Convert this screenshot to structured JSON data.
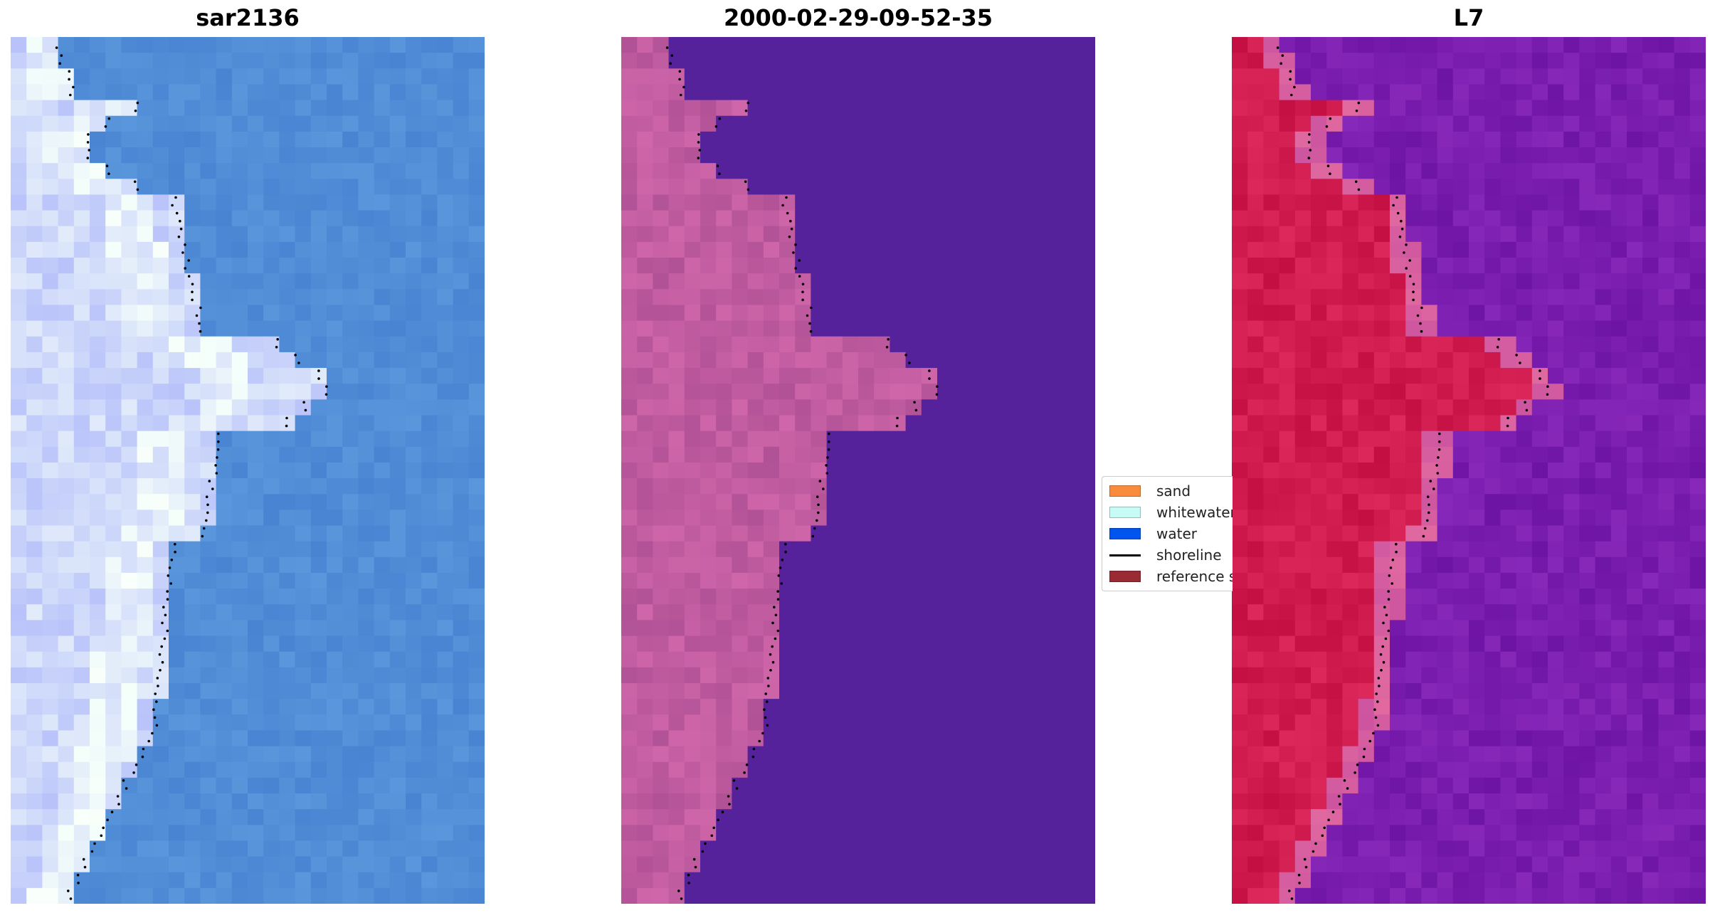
{
  "panels": [
    {
      "title": "sar2136"
    },
    {
      "title": "2000-02-29-09-52-35"
    },
    {
      "title": "L7"
    }
  ],
  "legend": {
    "items": [
      {
        "label": "sand",
        "color": "#f98c3c"
      },
      {
        "label": "whitewater",
        "color": "#c6fbf6"
      },
      {
        "label": "water",
        "color": "#0055ee"
      },
      {
        "label": "shoreline",
        "color": "#000000"
      },
      {
        "label": "reference s",
        "color": "#9b2b33"
      }
    ]
  }
}
